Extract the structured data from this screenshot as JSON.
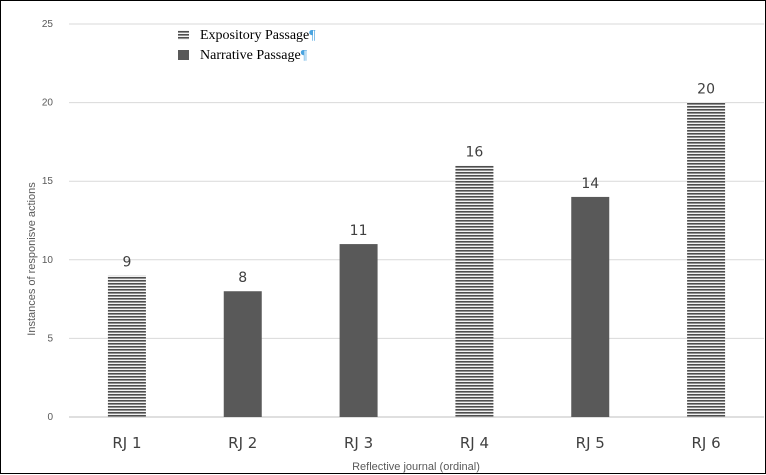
{
  "chart_data": {
    "type": "bar",
    "categories": [
      "RJ 1",
      "RJ 2",
      "RJ 3",
      "RJ 4",
      "RJ 5",
      "RJ 6"
    ],
    "values": [
      9,
      8,
      11,
      16,
      14,
      20
    ],
    "bar_series": [
      "Expository Passage",
      "Narrative Passage",
      "Narrative Passage",
      "Expository Passage",
      "Narrative Passage",
      "Expository Passage"
    ],
    "series": [
      {
        "name": "Expository Passage",
        "pattern": "horizontal-stripes",
        "color": "#4d4d4d"
      },
      {
        "name": "Narrative Passage",
        "pattern": "solid",
        "color": "#595959"
      }
    ],
    "legend_mark": "¶",
    "xlabel": "Reflective journal (ordinal)",
    "ylabel": "Instances of responisve actions",
    "ylim": [
      0,
      25
    ],
    "yticks": [
      0,
      5,
      10,
      15,
      20,
      25
    ],
    "grid": true,
    "legend_position": "top-left"
  }
}
